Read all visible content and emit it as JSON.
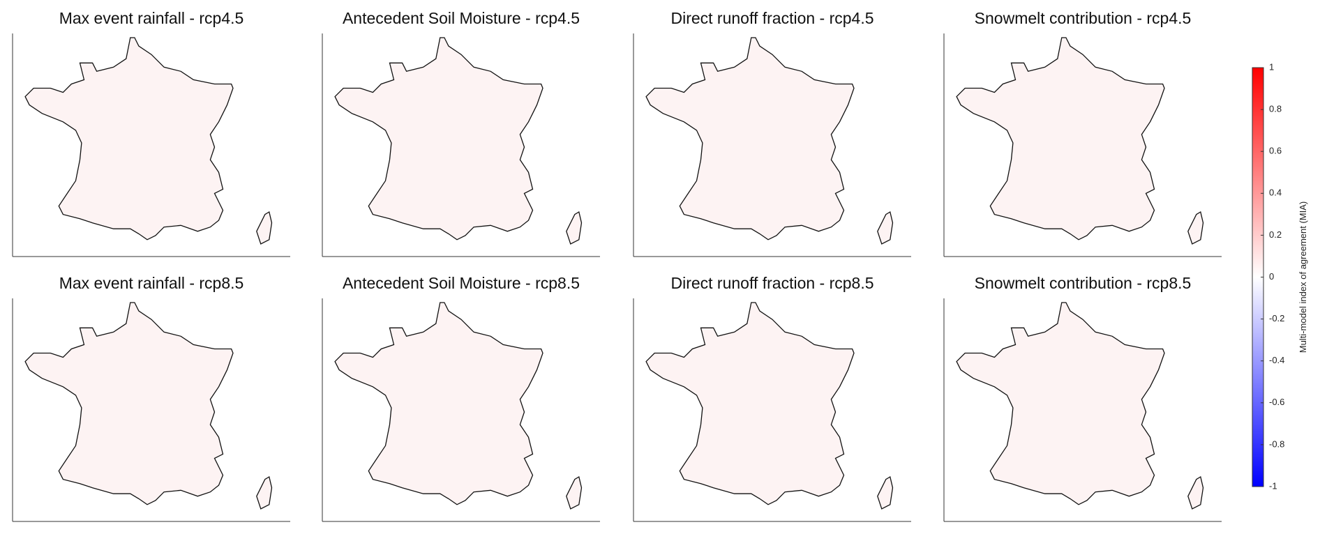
{
  "panels": [
    {
      "title": "Max event rainfall - rcp4.5"
    },
    {
      "title": "Antecedent Soil Moisture - rcp4.5"
    },
    {
      "title": "Direct runoff fraction - rcp4.5"
    },
    {
      "title": "Snowmelt contribution - rcp4.5"
    },
    {
      "title": "Max event rainfall - rcp8.5"
    },
    {
      "title": "Antecedent Soil Moisture - rcp8.5"
    },
    {
      "title": "Direct runoff fraction - rcp8.5"
    },
    {
      "title": "Snowmelt contribution - rcp8.5"
    }
  ],
  "colorbar": {
    "label": "Multi-model index of agreement (MIA)",
    "lim": [
      -1,
      1
    ],
    "ticks": [
      -1,
      -0.8,
      -0.6,
      -0.4,
      -0.2,
      0,
      0.2,
      0.4,
      0.6,
      0.8,
      1
    ],
    "colors": [
      "#0000ff",
      "#ffffff",
      "#ff0000"
    ]
  }
}
